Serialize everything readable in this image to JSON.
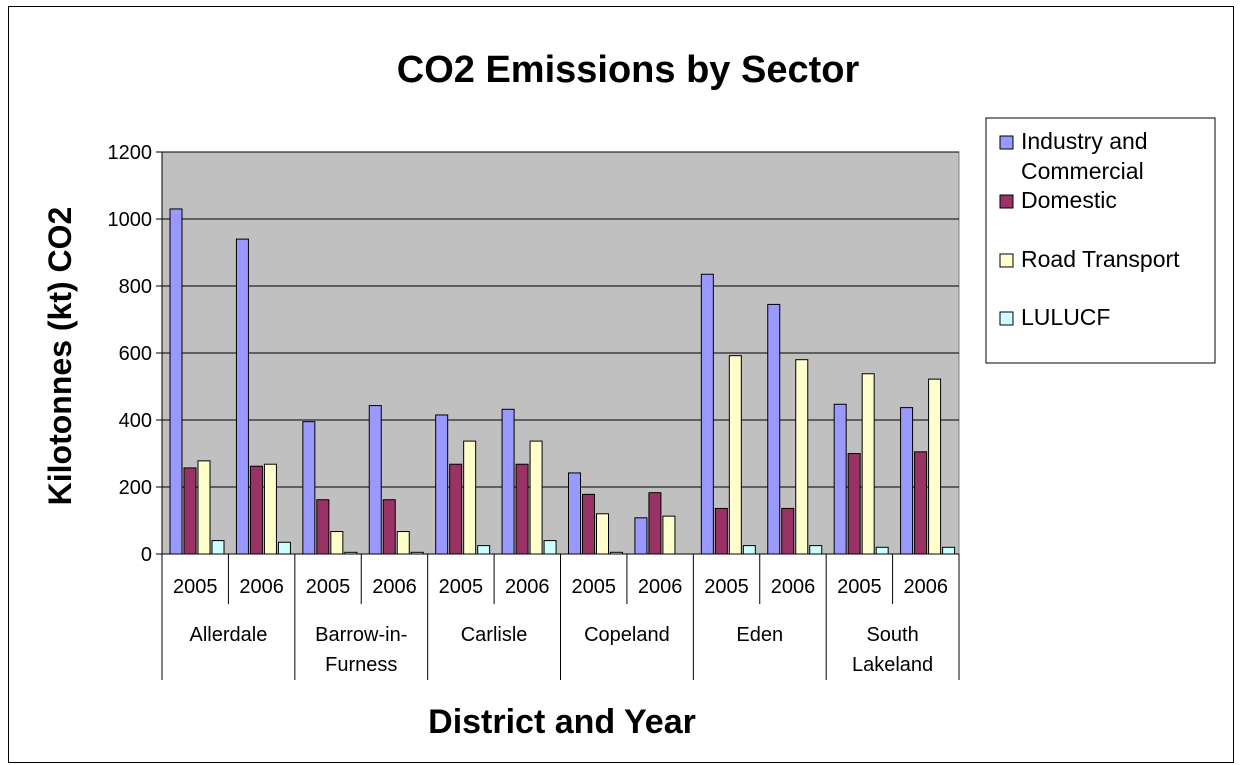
{
  "chart_data": {
    "type": "bar",
    "title": "CO2 Emissions by Sector",
    "xlabel": "District and Year",
    "ylabel": "Kilotonnes (kt) CO2",
    "ylim": [
      0,
      1200
    ],
    "yticks": [
      "0",
      "200",
      "400",
      "600",
      "800",
      "1000",
      "1200"
    ],
    "grid": true,
    "legend_position": "right",
    "districts": [
      {
        "name_lines": [
          "Allerdale"
        ],
        "years": [
          "2005",
          "2006"
        ]
      },
      {
        "name_lines": [
          "Barrow-in-",
          "Furness"
        ],
        "years": [
          "2005",
          "2006"
        ]
      },
      {
        "name_lines": [
          "Carlisle"
        ],
        "years": [
          "2005",
          "2006"
        ]
      },
      {
        "name_lines": [
          "Copeland"
        ],
        "years": [
          "2005",
          "2006"
        ]
      },
      {
        "name_lines": [
          "Eden"
        ],
        "years": [
          "2005",
          "2006"
        ]
      },
      {
        "name_lines": [
          "South",
          "Lakeland"
        ],
        "years": [
          "2005",
          "2006"
        ]
      }
    ],
    "series": [
      {
        "name_lines": [
          "Industry and",
          "Commercial"
        ],
        "color": "#9999FF",
        "values": [
          1030,
          940,
          395,
          443,
          415,
          432,
          242,
          108,
          835,
          745,
          447,
          437
        ]
      },
      {
        "name_lines": [
          "Domestic"
        ],
        "color": "#993366",
        "values": [
          257,
          262,
          162,
          162,
          268,
          268,
          178,
          183,
          136,
          136,
          300,
          305
        ]
      },
      {
        "name_lines": [
          "Road Transport"
        ],
        "color": "#FFFFCC",
        "values": [
          278,
          268,
          67,
          67,
          337,
          337,
          120,
          113,
          592,
          580,
          538,
          522
        ]
      },
      {
        "name_lines": [
          "LULUCF"
        ],
        "color": "#CCFFFF",
        "values": [
          40,
          35,
          5,
          5,
          25,
          40,
          5,
          0,
          25,
          25,
          20,
          20
        ]
      }
    ]
  }
}
